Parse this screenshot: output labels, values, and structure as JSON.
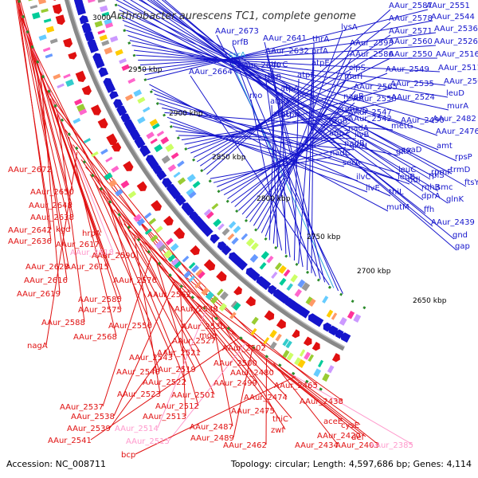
{
  "header": {
    "title": "Arthrobacter aurescens TC1, complete genome",
    "partial_tick": "3000"
  },
  "ticks": [
    "2950 kbp",
    "2900 kbp",
    "2850 kbp",
    "2800 kbp",
    "2750 kbp",
    "2700 kbp",
    "2650 kbp"
  ],
  "colors": {
    "forward": "#1515cc",
    "reverse": "#e01010",
    "rna_forward": "#33aadd",
    "rna_reverse": "#ff99cc",
    "backbone": "#888888",
    "tick_marks": "#2a8a2a"
  },
  "forward_labels": [
    {
      "text": "AAur_2673",
      "color": "#1515cc"
    },
    {
      "text": "prfB",
      "color": "#1515cc"
    },
    {
      "text": "ssrA",
      "color": "#33aadd"
    },
    {
      "text": "AAur_2664",
      "color": "#1515cc"
    },
    {
      "text": "AAur_2641",
      "color": "#1515cc"
    },
    {
      "text": "AAur_2632",
      "color": "#1515cc"
    },
    {
      "text": "AAur_2640",
      "color": "#1515cc"
    },
    {
      "text": "thrA",
      "color": "#1515cc"
    },
    {
      "text": "prfA",
      "color": "#1515cc"
    },
    {
      "text": "thrC",
      "color": "#1515cc"
    },
    {
      "text": "atpE",
      "color": "#1515cc"
    },
    {
      "text": "atpF",
      "color": "#1515cc"
    },
    {
      "text": "thrB",
      "color": "#1515cc"
    },
    {
      "text": "atpA",
      "color": "#1515cc"
    },
    {
      "text": "rho",
      "color": "#1515cc"
    },
    {
      "text": "atpG",
      "color": "#1515cc"
    },
    {
      "text": "atpH",
      "color": "#1515cc"
    },
    {
      "text": "atpD",
      "color": "#1515cc"
    },
    {
      "text": "lysA",
      "color": "#1515cc"
    },
    {
      "text": "AAur_2593",
      "color": "#1515cc"
    },
    {
      "text": "AAur_2586",
      "color": "#1515cc"
    },
    {
      "text": "clpS",
      "color": "#1515cc"
    },
    {
      "text": "murI",
      "color": "#1515cc"
    },
    {
      "text": "AAur_2565",
      "color": "#1515cc"
    },
    {
      "text": "nagB",
      "color": "#1515cc"
    },
    {
      "text": "AAur_2558",
      "color": "#1515cc"
    },
    {
      "text": "crph",
      "color": "#1515cc"
    },
    {
      "text": "AAur_2547",
      "color": "#1515cc"
    },
    {
      "text": "rdgB",
      "color": "#1515cc"
    },
    {
      "text": "AAur_2542",
      "color": "#1515cc"
    },
    {
      "text": "aqpZ",
      "color": "#1515cc"
    },
    {
      "text": "nadA",
      "color": "#1515cc"
    },
    {
      "text": "nadB",
      "color": "#1515cc"
    },
    {
      "text": "nadC",
      "color": "#1515cc"
    },
    {
      "text": "AAur_2587",
      "color": "#1515cc"
    },
    {
      "text": "AAur_2578",
      "color": "#1515cc"
    },
    {
      "text": "AAur_2571",
      "color": "#1515cc"
    },
    {
      "text": "AAur_2560",
      "color": "#1515cc"
    },
    {
      "text": "AAur_2550",
      "color": "#1515cc"
    },
    {
      "text": "AAur_2549",
      "color": "#1515cc"
    },
    {
      "text": "AAur_2535",
      "color": "#1515cc"
    },
    {
      "text": "AAur_2524",
      "color": "#1515cc"
    },
    {
      "text": "ilvD",
      "color": "#1515cc"
    },
    {
      "text": "ilvB",
      "color": "#1515cc"
    },
    {
      "text": "ilvH",
      "color": "#1515cc"
    },
    {
      "text": "serA",
      "color": "#1515cc"
    },
    {
      "text": "ilvC",
      "color": "#1515cc"
    },
    {
      "text": "ilvE",
      "color": "#1515cc"
    },
    {
      "text": "metG",
      "color": "#1515cc"
    },
    {
      "text": "gltX",
      "color": "#1515cc"
    },
    {
      "text": "leuB",
      "color": "#1515cc"
    },
    {
      "text": "leuC",
      "color": "#1515cc"
    },
    {
      "text": "ddl",
      "color": "#1515cc"
    },
    {
      "text": "thiL",
      "color": "#1515cc"
    },
    {
      "text": "mutM",
      "color": "#1515cc"
    },
    {
      "text": "AAur_2551",
      "color": "#1515cc"
    },
    {
      "text": "AAur_2544",
      "color": "#1515cc"
    },
    {
      "text": "AAur_2536",
      "color": "#1515cc"
    },
    {
      "text": "AAur_2526",
      "color": "#1515cc"
    },
    {
      "text": "AAur_2516",
      "color": "#1515cc"
    },
    {
      "text": "AAur_2511",
      "color": "#1515cc"
    },
    {
      "text": "AAur_2504",
      "color": "#1515cc"
    },
    {
      "text": "leuD",
      "color": "#1515cc"
    },
    {
      "text": "murA",
      "color": "#1515cc"
    },
    {
      "text": "AAur_2490",
      "color": "#1515cc"
    },
    {
      "text": "AAur_2482",
      "color": "#1515cc"
    },
    {
      "text": "AAur_2476",
      "color": "#1515cc"
    },
    {
      "text": "amt",
      "color": "#1515cc"
    },
    {
      "text": "coaD",
      "color": "#1515cc"
    },
    {
      "text": "rpsP",
      "color": "#1515cc"
    },
    {
      "text": "rpmF",
      "color": "#1515cc"
    },
    {
      "text": "trmD",
      "color": "#1515cc"
    },
    {
      "text": "smc",
      "color": "#1515cc"
    },
    {
      "text": "rplS",
      "color": "#1515cc"
    },
    {
      "text": "ftsY",
      "color": "#1515cc"
    },
    {
      "text": "rnhB",
      "color": "#1515cc"
    },
    {
      "text": "glnK",
      "color": "#1515cc"
    },
    {
      "text": "dprA",
      "color": "#1515cc"
    },
    {
      "text": "ffh",
      "color": "#1515cc"
    },
    {
      "text": "AAur_2439",
      "color": "#1515cc"
    },
    {
      "text": "gnd",
      "color": "#1515cc"
    },
    {
      "text": "gap",
      "color": "#1515cc"
    }
  ],
  "reverse_labels": [
    {
      "text": "AAur_2672",
      "color": "#e01010"
    },
    {
      "text": "AAur_2650",
      "color": "#e01010"
    },
    {
      "text": "AAur_2648",
      "color": "#e01010"
    },
    {
      "text": "AAur_2638",
      "color": "#e01010"
    },
    {
      "text": "AAur_2642",
      "color": "#e01010"
    },
    {
      "text": "kgd",
      "color": "#e01010"
    },
    {
      "text": "AAur_2636",
      "color": "#e01010"
    },
    {
      "text": "hrpA",
      "color": "#e01010"
    },
    {
      "text": "AAur_2617",
      "color": "#e01010"
    },
    {
      "text": "AAur_2618",
      "color": "#ff99cc"
    },
    {
      "text": "AAur_2590",
      "color": "#e01010"
    },
    {
      "text": "AAur_2628",
      "color": "#e01010"
    },
    {
      "text": "AAur_2615",
      "color": "#e01010"
    },
    {
      "text": "AAur_2616",
      "color": "#e01010"
    },
    {
      "text": "AAur_2576",
      "color": "#e01010"
    },
    {
      "text": "AAur_2619",
      "color": "#e01010"
    },
    {
      "text": "AAur_2585",
      "color": "#e01010"
    },
    {
      "text": "AAur_2562",
      "color": "#e01010"
    },
    {
      "text": "AAur_2575",
      "color": "#e01010"
    },
    {
      "text": "AAur_2548",
      "color": "#e01010"
    },
    {
      "text": "AAur_2588",
      "color": "#e01010"
    },
    {
      "text": "AAur_2556",
      "color": "#e01010"
    },
    {
      "text": "AAur_2530",
      "color": "#e01010"
    },
    {
      "text": "AAur_2568",
      "color": "#e01010"
    },
    {
      "text": "mqo",
      "color": "#e01010"
    },
    {
      "text": "nagA",
      "color": "#e01010"
    },
    {
      "text": "AAur_2527",
      "color": "#e01010"
    },
    {
      "text": "AAur_2502",
      "color": "#e01010"
    },
    {
      "text": "AAur_2521",
      "color": "#e01010"
    },
    {
      "text": "AAur_2543",
      "color": "#e01010"
    },
    {
      "text": "AAur_2500",
      "color": "#e01010"
    },
    {
      "text": "AAur_2519",
      "color": "#e01010"
    },
    {
      "text": "AAur_2540",
      "color": "#e01010"
    },
    {
      "text": "AAur_2480",
      "color": "#e01010"
    },
    {
      "text": "AAur_2522",
      "color": "#e01010"
    },
    {
      "text": "AAur_2499",
      "color": "#e01010"
    },
    {
      "text": "AAur_2465",
      "color": "#e01010"
    },
    {
      "text": "AAur_2523",
      "color": "#e01010"
    },
    {
      "text": "AAur_2501",
      "color": "#e01010"
    },
    {
      "text": "AAur_2474",
      "color": "#e01010"
    },
    {
      "text": "AAur_2537",
      "color": "#e01010"
    },
    {
      "text": "AAur_2512",
      "color": "#e01010"
    },
    {
      "text": "AAur_2475",
      "color": "#e01010"
    },
    {
      "text": "AAur_2438",
      "color": "#e01010"
    },
    {
      "text": "AAur_2538",
      "color": "#e01010"
    },
    {
      "text": "AAur_2513",
      "color": "#e01010"
    },
    {
      "text": "thiC",
      "color": "#e01010"
    },
    {
      "text": "aceE",
      "color": "#e01010"
    },
    {
      "text": "AAur_2539",
      "color": "#e01010"
    },
    {
      "text": "AAur_2514",
      "color": "#ff99cc"
    },
    {
      "text": "AAur_2487",
      "color": "#e01010"
    },
    {
      "text": "cysE",
      "color": "#e01010"
    },
    {
      "text": "zwf",
      "color": "#e01010"
    },
    {
      "text": "AAur_2420",
      "color": "#e01010"
    },
    {
      "text": "AAur_2541",
      "color": "#e01010"
    },
    {
      "text": "AAur_2515",
      "color": "#ff99cc"
    },
    {
      "text": "AAur_2489",
      "color": "#e01010"
    },
    {
      "text": "def",
      "color": "#e01010"
    },
    {
      "text": "AAur_2462",
      "color": "#e01010"
    },
    {
      "text": "AAur_2434",
      "color": "#e01010"
    },
    {
      "text": "AAur_2403",
      "color": "#e01010"
    },
    {
      "text": "AAur_2385",
      "color": "#ff99cc"
    },
    {
      "text": "bcp",
      "color": "#e01010"
    }
  ],
  "footer": {
    "accession": "Accession: NC_008711",
    "summary": "Topology: circular; Length: 4,597,686 bp; Genes: 4,114"
  }
}
